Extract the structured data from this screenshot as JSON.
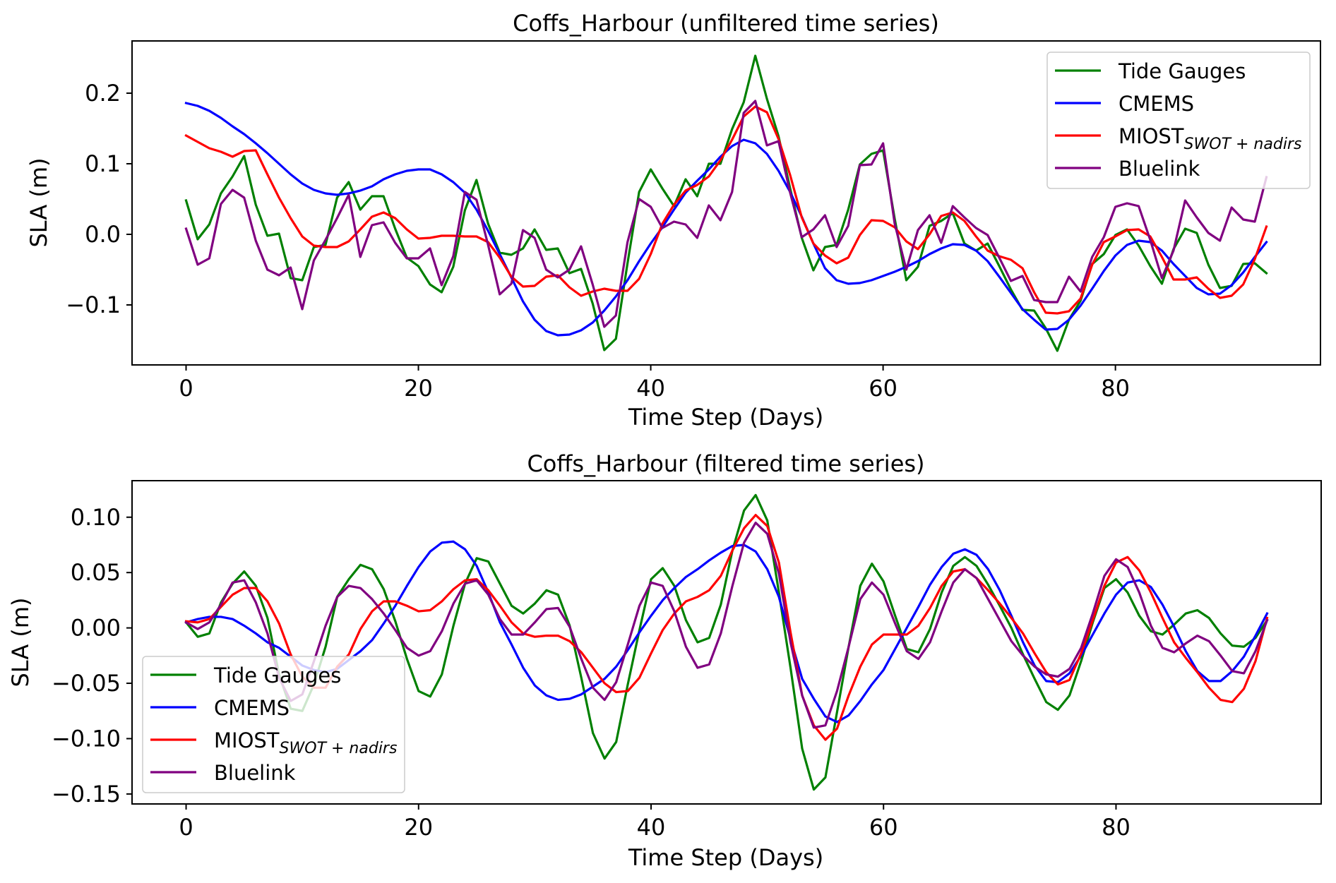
{
  "chart_data": [
    {
      "type": "line",
      "title": "Coffs_Harbour (unfiltered time series)",
      "xlabel": "Time Step (Days)",
      "ylabel": "SLA (m)",
      "xlim": [
        -4.65,
        97.65
      ],
      "ylim": [
        -0.185,
        0.274
      ],
      "xticks": [
        0,
        20,
        40,
        60,
        80
      ],
      "xtick_labels": [
        "0",
        "20",
        "40",
        "60",
        "80"
      ],
      "yticks": [
        -0.1,
        0.0,
        0.1,
        0.2
      ],
      "ytick_labels": [
        "−0.1",
        "0.0",
        "0.1",
        "0.2"
      ],
      "grid": false,
      "legend_position": "top-right",
      "x_start": 0,
      "x_step": 1,
      "series": [
        {
          "name": "Tide Gauges",
          "label_main": "Tide Gauges",
          "label_sub": "",
          "color": "#008000",
          "values": [
            0.048,
            -0.007,
            0.014,
            0.058,
            0.082,
            0.111,
            0.042,
            -0.002,
            0.001,
            -0.062,
            -0.065,
            -0.018,
            -0.015,
            0.052,
            0.074,
            0.035,
            0.054,
            0.054,
            0.008,
            -0.033,
            -0.045,
            -0.071,
            -0.082,
            -0.046,
            0.034,
            0.077,
            0.015,
            -0.026,
            -0.029,
            -0.02,
            0.007,
            -0.022,
            -0.02,
            -0.055,
            -0.049,
            -0.098,
            -0.164,
            -0.148,
            -0.041,
            0.06,
            0.092,
            0.065,
            0.04,
            0.078,
            0.054,
            0.1,
            0.1,
            0.149,
            0.187,
            0.253,
            0.192,
            0.139,
            0.065,
            -0.005,
            -0.051,
            -0.018,
            -0.015,
            0.035,
            0.099,
            0.114,
            0.119,
            0.022,
            -0.065,
            -0.046,
            0.012,
            0.019,
            0.03,
            -0.013,
            -0.023,
            -0.013,
            -0.045,
            -0.078,
            -0.107,
            -0.108,
            -0.133,
            -0.165,
            -0.121,
            -0.094,
            -0.042,
            -0.028,
            -0.001,
            0.007,
            -0.016,
            -0.045,
            -0.07,
            -0.021,
            0.008,
            0.002,
            -0.043,
            -0.076,
            -0.073,
            -0.042,
            -0.041,
            -0.055
          ]
        },
        {
          "name": "CMEMS",
          "label_main": "CMEMS",
          "label_sub": "",
          "color": "#0000ff",
          "values": [
            0.186,
            0.182,
            0.175,
            0.165,
            0.153,
            0.142,
            0.129,
            0.115,
            0.1,
            0.085,
            0.072,
            0.063,
            0.058,
            0.056,
            0.058,
            0.062,
            0.068,
            0.078,
            0.085,
            0.09,
            0.092,
            0.092,
            0.085,
            0.074,
            0.059,
            0.035,
            0.005,
            -0.028,
            -0.061,
            -0.095,
            -0.121,
            -0.137,
            -0.143,
            -0.142,
            -0.136,
            -0.125,
            -0.108,
            -0.088,
            -0.065,
            -0.038,
            -0.013,
            0.01,
            0.035,
            0.059,
            0.076,
            0.092,
            0.11,
            0.125,
            0.134,
            0.129,
            0.114,
            0.09,
            0.06,
            0.025,
            -0.013,
            -0.048,
            -0.065,
            -0.07,
            -0.069,
            -0.065,
            -0.059,
            -0.053,
            -0.046,
            -0.038,
            -0.028,
            -0.02,
            -0.014,
            -0.015,
            -0.023,
            -0.038,
            -0.06,
            -0.083,
            -0.106,
            -0.121,
            -0.135,
            -0.134,
            -0.121,
            -0.101,
            -0.077,
            -0.052,
            -0.03,
            -0.015,
            -0.009,
            -0.011,
            -0.023,
            -0.042,
            -0.059,
            -0.076,
            -0.085,
            -0.084,
            -0.072,
            -0.054,
            -0.032,
            -0.011
          ]
        },
        {
          "name": "MIOST_SWOT+nadirs",
          "label_main": "MIOST",
          "label_sub": "SWOT + nadirs",
          "color": "#ff0000",
          "values": [
            0.14,
            0.131,
            0.122,
            0.117,
            0.11,
            0.118,
            0.119,
            0.085,
            0.052,
            0.023,
            -0.003,
            -0.016,
            -0.018,
            -0.018,
            -0.01,
            0.007,
            0.025,
            0.031,
            0.023,
            0.007,
            -0.006,
            -0.005,
            -0.002,
            -0.002,
            -0.003,
            -0.003,
            -0.011,
            -0.033,
            -0.06,
            -0.074,
            -0.073,
            -0.06,
            -0.058,
            -0.075,
            -0.087,
            -0.081,
            -0.077,
            -0.08,
            -0.08,
            -0.063,
            -0.028,
            0.015,
            0.042,
            0.062,
            0.07,
            0.082,
            0.105,
            0.134,
            0.167,
            0.181,
            0.173,
            0.135,
            0.084,
            0.024,
            -0.013,
            -0.03,
            -0.041,
            -0.033,
            -0.001,
            0.02,
            0.019,
            0.01,
            -0.01,
            -0.021,
            0.0,
            0.026,
            0.031,
            0.019,
            -0.003,
            -0.023,
            -0.031,
            -0.036,
            -0.048,
            -0.082,
            -0.111,
            -0.112,
            -0.109,
            -0.091,
            -0.043,
            -0.011,
            -0.003,
            0.006,
            0.007,
            -0.003,
            -0.032,
            -0.064,
            -0.064,
            -0.061,
            -0.077,
            -0.09,
            -0.087,
            -0.071,
            -0.035,
            0.011
          ]
        },
        {
          "name": "Bluelink",
          "label_main": "Bluelink",
          "label_sub": "",
          "color": "#800080",
          "values": [
            0.008,
            -0.043,
            -0.034,
            0.043,
            0.063,
            0.052,
            -0.009,
            -0.05,
            -0.058,
            -0.047,
            -0.106,
            -0.037,
            -0.008,
            0.023,
            0.056,
            -0.032,
            0.013,
            0.017,
            -0.012,
            -0.034,
            -0.034,
            -0.02,
            -0.072,
            -0.031,
            0.06,
            0.049,
            -0.015,
            -0.085,
            -0.07,
            0.006,
            -0.005,
            -0.05,
            -0.061,
            -0.05,
            -0.017,
            -0.071,
            -0.131,
            -0.115,
            -0.011,
            0.05,
            0.039,
            0.009,
            0.018,
            0.014,
            -0.005,
            0.041,
            0.02,
            0.06,
            0.172,
            0.189,
            0.126,
            0.132,
            0.059,
            -0.004,
            0.007,
            0.027,
            -0.018,
            0.012,
            0.098,
            0.099,
            0.129,
            0.015,
            -0.05,
            0.006,
            0.027,
            -0.012,
            0.04,
            0.024,
            0.009,
            -0.001,
            -0.033,
            -0.066,
            -0.059,
            -0.093,
            -0.096,
            -0.096,
            -0.06,
            -0.081,
            -0.032,
            -0.004,
            0.039,
            0.044,
            0.04,
            -0.008,
            -0.062,
            -0.023,
            0.048,
            0.024,
            0.002,
            -0.009,
            0.038,
            0.021,
            0.018,
            0.081
          ]
        }
      ]
    },
    {
      "type": "line",
      "title": "Coffs_Harbour (filtered time series)",
      "xlabel": "Time Step (Days)",
      "ylabel": "SLA (m)",
      "xlim": [
        -4.65,
        97.65
      ],
      "ylim": [
        -0.159,
        0.133
      ],
      "xticks": [
        0,
        20,
        40,
        60,
        80
      ],
      "xtick_labels": [
        "0",
        "20",
        "40",
        "60",
        "80"
      ],
      "yticks": [
        -0.15,
        -0.1,
        -0.05,
        0.0,
        0.05,
        0.1
      ],
      "ytick_labels": [
        "−0.15",
        "−0.10",
        "−0.05",
        "0.00",
        "0.05",
        "0.10"
      ],
      "grid": false,
      "legend_position": "lower-left",
      "x_start": 0,
      "x_step": 1,
      "series": [
        {
          "name": "Tide Gauges",
          "label_main": "Tide Gauges",
          "label_sub": "",
          "color": "#008000",
          "values": [
            0.005,
            -0.008,
            -0.005,
            0.023,
            0.04,
            0.051,
            0.038,
            0.009,
            -0.042,
            -0.073,
            -0.075,
            -0.051,
            -0.017,
            0.028,
            0.044,
            0.057,
            0.053,
            0.035,
            0.006,
            -0.028,
            -0.057,
            -0.062,
            -0.042,
            0.002,
            0.04,
            0.063,
            0.06,
            0.04,
            0.02,
            0.013,
            0.022,
            0.034,
            0.03,
            0.002,
            -0.045,
            -0.095,
            -0.118,
            -0.103,
            -0.051,
            -0.002,
            0.044,
            0.054,
            0.038,
            0.007,
            -0.013,
            -0.009,
            0.021,
            0.07,
            0.106,
            0.12,
            0.097,
            0.032,
            -0.036,
            -0.109,
            -0.146,
            -0.135,
            -0.076,
            -0.017,
            0.038,
            0.058,
            0.042,
            0.011,
            -0.019,
            -0.022,
            -0.001,
            0.032,
            0.056,
            0.064,
            0.056,
            0.039,
            0.02,
            0.0,
            -0.024,
            -0.046,
            -0.067,
            -0.074,
            -0.061,
            -0.03,
            0.005,
            0.036,
            0.044,
            0.032,
            0.011,
            -0.003,
            -0.006,
            0.003,
            0.013,
            0.016,
            0.009,
            -0.005,
            -0.016,
            -0.017,
            -0.009,
            0.007
          ]
        },
        {
          "name": "CMEMS",
          "label_main": "CMEMS",
          "label_sub": "",
          "color": "#0000ff",
          "values": [
            0.005,
            0.008,
            0.01,
            0.01,
            0.008,
            0.002,
            -0.005,
            -0.013,
            -0.018,
            -0.026,
            -0.034,
            -0.038,
            -0.04,
            -0.037,
            -0.029,
            -0.021,
            -0.011,
            0.004,
            0.02,
            0.038,
            0.055,
            0.069,
            0.077,
            0.078,
            0.071,
            0.056,
            0.032,
            0.005,
            -0.015,
            -0.036,
            -0.052,
            -0.061,
            -0.065,
            -0.064,
            -0.06,
            -0.053,
            -0.046,
            -0.035,
            -0.02,
            -0.004,
            0.011,
            0.025,
            0.036,
            0.046,
            0.053,
            0.061,
            0.068,
            0.074,
            0.075,
            0.069,
            0.053,
            0.028,
            -0.01,
            -0.046,
            -0.064,
            -0.08,
            -0.085,
            -0.079,
            -0.066,
            -0.051,
            -0.038,
            -0.019,
            0.0,
            0.019,
            0.039,
            0.055,
            0.067,
            0.071,
            0.066,
            0.053,
            0.034,
            0.011,
            -0.013,
            -0.034,
            -0.048,
            -0.049,
            -0.041,
            -0.025,
            -0.006,
            0.013,
            0.03,
            0.041,
            0.043,
            0.037,
            0.021,
            0.001,
            -0.021,
            -0.039,
            -0.048,
            -0.048,
            -0.039,
            -0.026,
            -0.007,
            0.013
          ]
        },
        {
          "name": "MIOST_SWOT+nadirs",
          "label_main": "MIOST",
          "label_sub": "SWOT + nadirs",
          "color": "#ff0000",
          "values": [
            0.006,
            0.005,
            0.008,
            0.019,
            0.03,
            0.036,
            0.036,
            0.024,
            0.004,
            -0.024,
            -0.044,
            -0.054,
            -0.054,
            -0.035,
            -0.024,
            -0.001,
            0.015,
            0.024,
            0.024,
            0.02,
            0.015,
            0.016,
            0.024,
            0.035,
            0.043,
            0.044,
            0.034,
            0.02,
            0.005,
            -0.005,
            -0.008,
            -0.007,
            -0.007,
            -0.012,
            -0.022,
            -0.036,
            -0.05,
            -0.058,
            -0.057,
            -0.045,
            -0.023,
            -0.002,
            0.013,
            0.024,
            0.028,
            0.034,
            0.047,
            0.07,
            0.09,
            0.102,
            0.092,
            0.059,
            -0.004,
            -0.061,
            -0.088,
            -0.101,
            -0.091,
            -0.061,
            -0.035,
            -0.015,
            -0.006,
            -0.006,
            -0.006,
            0.002,
            0.018,
            0.038,
            0.051,
            0.053,
            0.045,
            0.034,
            0.022,
            0.009,
            -0.005,
            -0.023,
            -0.04,
            -0.051,
            -0.047,
            -0.023,
            0.007,
            0.038,
            0.059,
            0.064,
            0.052,
            0.032,
            0.009,
            -0.013,
            -0.027,
            -0.04,
            -0.054,
            -0.065,
            -0.067,
            -0.055,
            -0.03,
            0.009
          ]
        },
        {
          "name": "Bluelink",
          "label_main": "Bluelink",
          "label_sub": "",
          "color": "#800080",
          "values": [
            0.005,
            -0.001,
            0.005,
            0.021,
            0.041,
            0.043,
            0.023,
            -0.005,
            -0.045,
            -0.066,
            -0.06,
            -0.03,
            0.002,
            0.028,
            0.038,
            0.036,
            0.026,
            0.013,
            -0.002,
            -0.018,
            -0.025,
            -0.021,
            -0.003,
            0.022,
            0.04,
            0.043,
            0.03,
            0.008,
            -0.006,
            -0.006,
            0.005,
            0.017,
            0.018,
            0.001,
            -0.028,
            -0.054,
            -0.065,
            -0.049,
            -0.015,
            0.02,
            0.041,
            0.038,
            0.015,
            -0.017,
            -0.036,
            -0.033,
            -0.005,
            0.038,
            0.077,
            0.095,
            0.085,
            0.049,
            -0.013,
            -0.061,
            -0.09,
            -0.088,
            -0.057,
            -0.017,
            0.026,
            0.041,
            0.03,
            0.004,
            -0.021,
            -0.028,
            -0.013,
            0.015,
            0.041,
            0.053,
            0.045,
            0.026,
            0.007,
            -0.012,
            -0.025,
            -0.035,
            -0.042,
            -0.044,
            -0.037,
            -0.018,
            0.013,
            0.047,
            0.062,
            0.055,
            0.032,
            0.002,
            -0.018,
            -0.022,
            -0.014,
            -0.007,
            -0.012,
            -0.025,
            -0.039,
            -0.041,
            -0.021,
            0.007
          ]
        }
      ]
    }
  ]
}
